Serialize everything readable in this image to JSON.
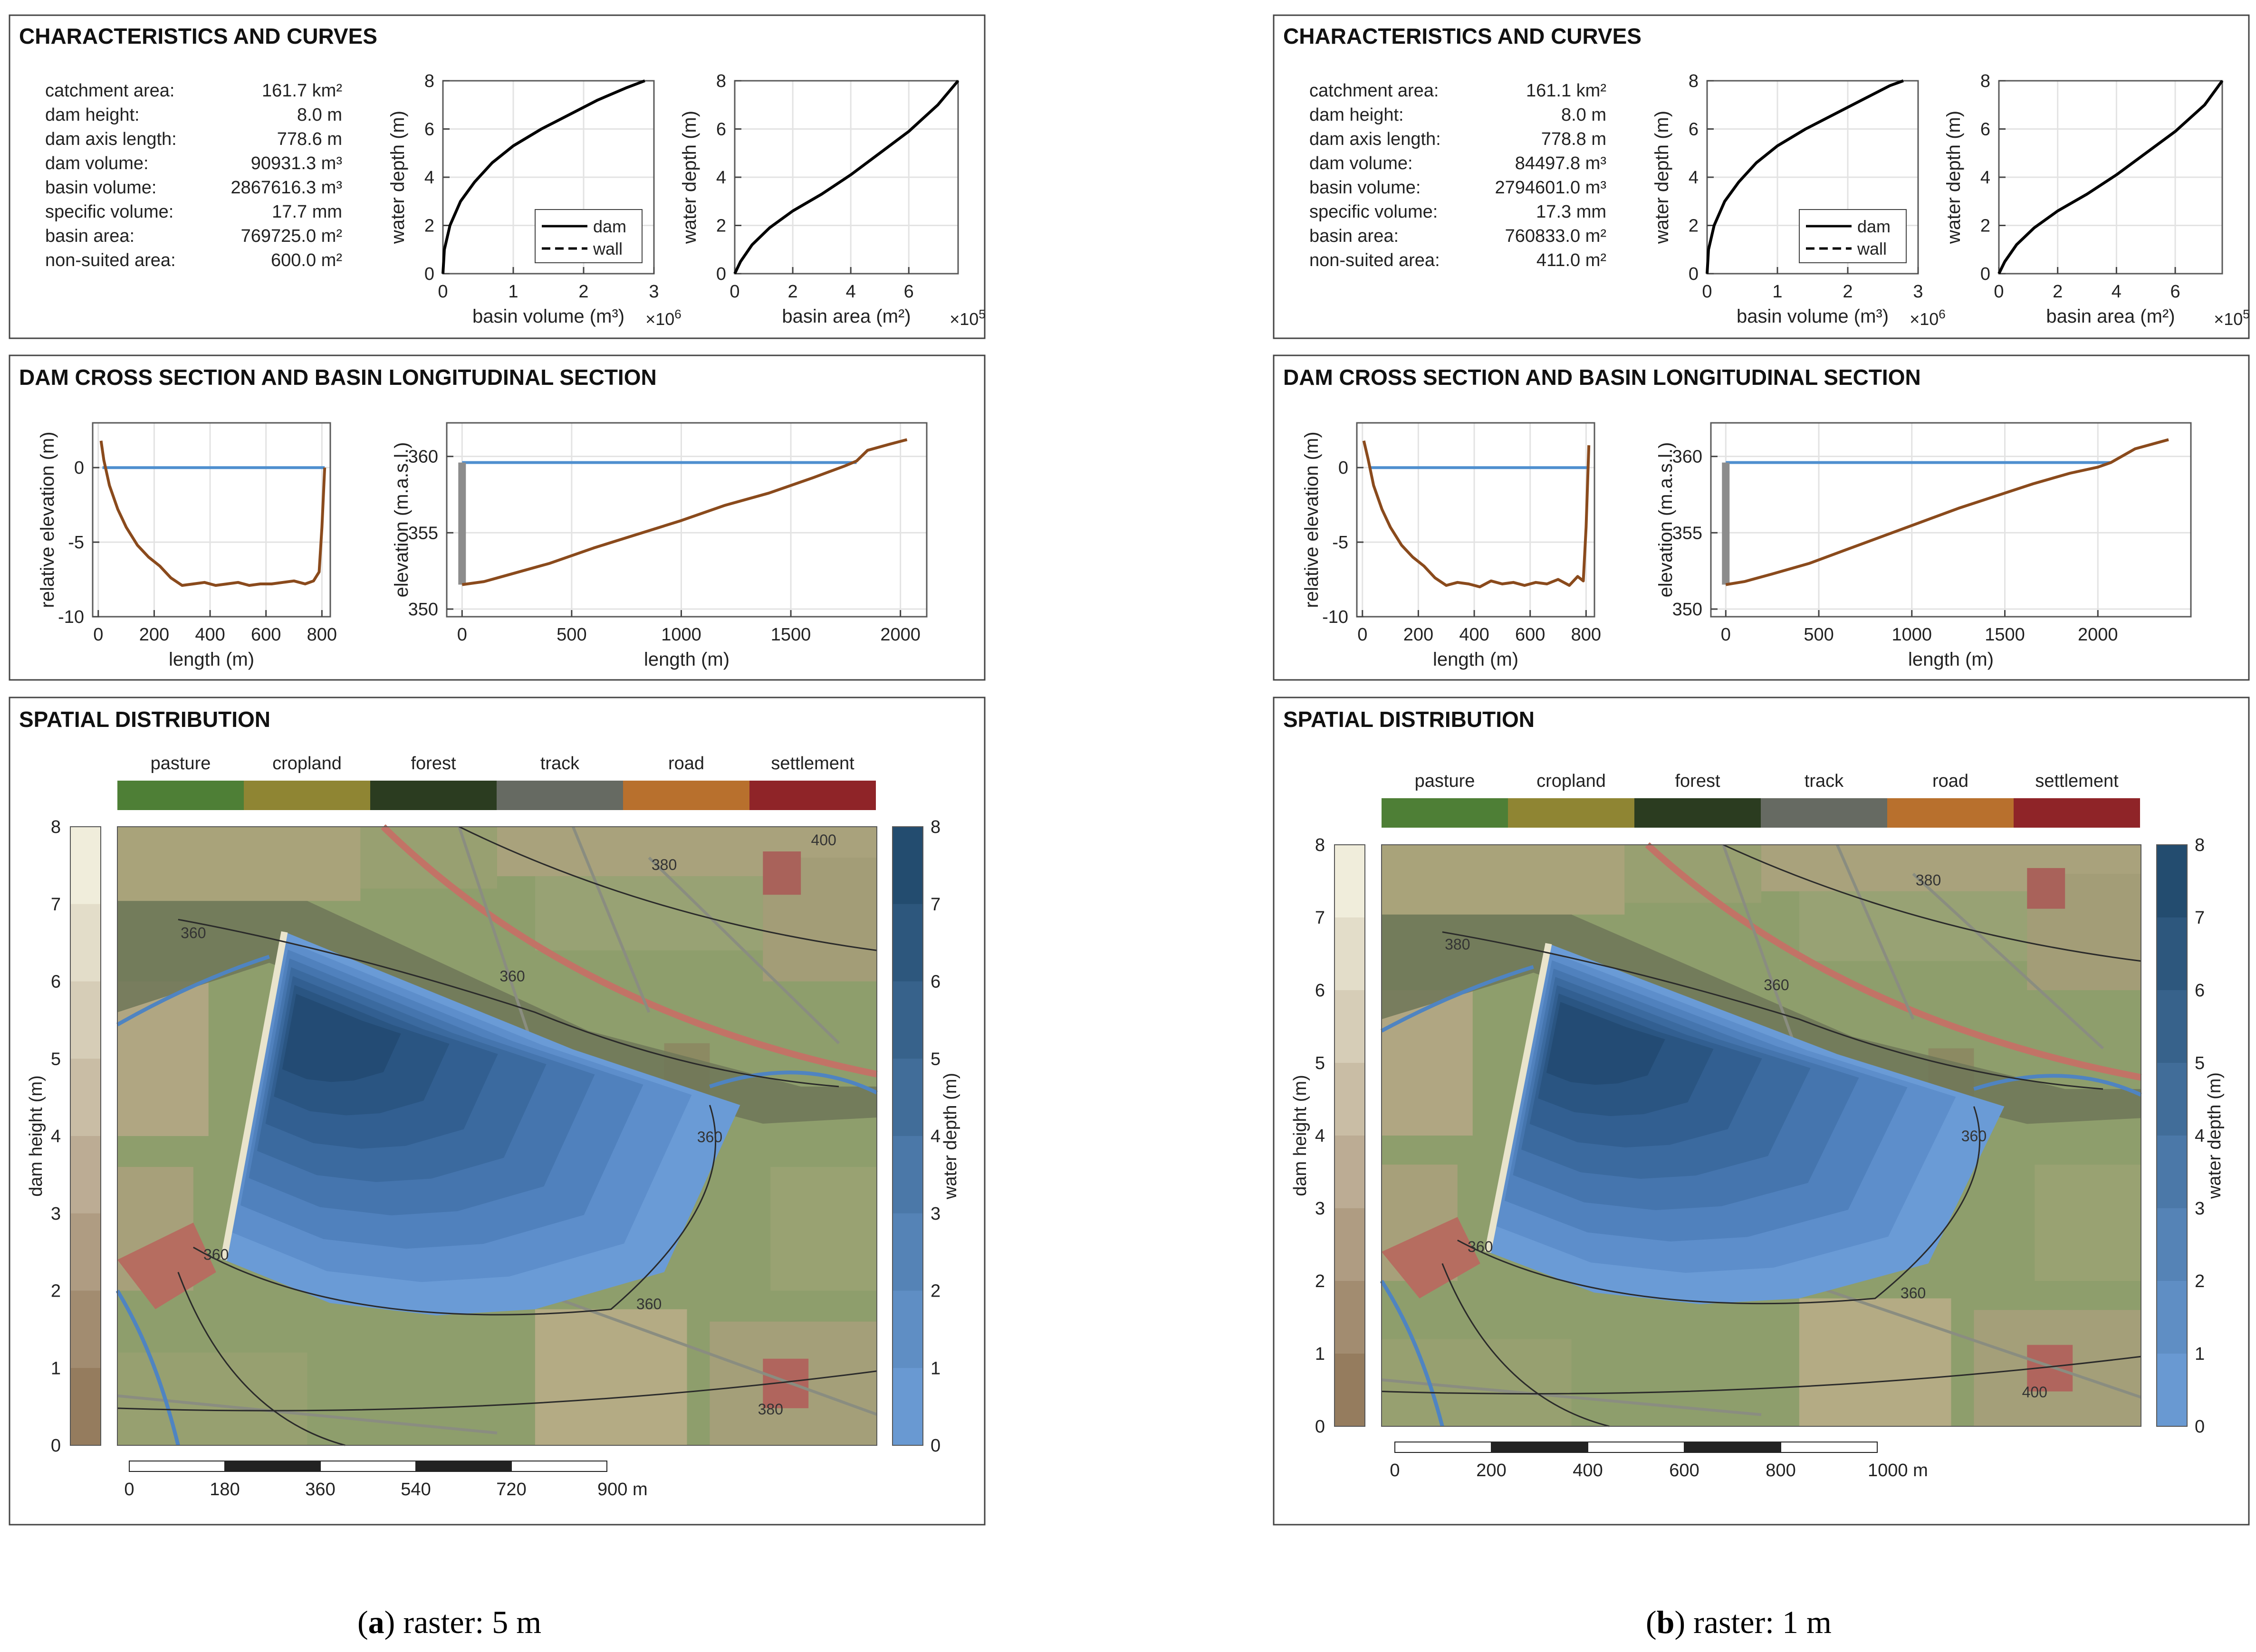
{
  "colors": {
    "curve": "#000000",
    "water_line": "#4f8fcf",
    "terrain": "#8a4a1c",
    "dam_wall": "#8c8c8c",
    "grid": "#e3e3e3",
    "contour": "#2a2a2a"
  },
  "landuse_legend": {
    "labels": [
      "pasture",
      "cropland",
      "forest",
      "track",
      "road",
      "settlement"
    ],
    "colors": [
      "#4e7f36",
      "#8f8533",
      "#2b3c20",
      "#666a62",
      "#b8702d",
      "#8f2428"
    ]
  },
  "panels": [
    {
      "id": "a",
      "caption": {
        "letter": "a",
        "rest": " raster: 5 m",
        "open": "(",
        "close": ")"
      },
      "sections": {
        "characteristics": "CHARACTERISTICS AND CURVES",
        "sections": "DAM CROSS SECTION AND BASIN LONGITUDINAL SECTION",
        "spatial": "SPATIAL DISTRIBUTION"
      },
      "stats": [
        {
          "label": "catchment area:",
          "value": "161.7 km²"
        },
        {
          "label": "dam height:",
          "value": "8.0 m"
        },
        {
          "label": "dam axis length:",
          "value": "778.6 m"
        },
        {
          "label": "dam volume:",
          "value": "90931.3 m³"
        },
        {
          "label": "basin volume:",
          "value": "2867616.3 m³"
        },
        {
          "label": "specific volume:",
          "value": "17.7 mm"
        },
        {
          "label": "basin area:",
          "value": "769725.0 m²"
        },
        {
          "label": "non-suited area:",
          "value": "600.0 m²"
        }
      ],
      "scalebar": {
        "ticks": [
          "0",
          "180",
          "360",
          "540",
          "720",
          "900 m"
        ]
      },
      "contours": [
        "360",
        "360",
        "360",
        "360",
        "360",
        "380",
        "380",
        "400"
      ],
      "chart_data": [
        {
          "type": "line",
          "title": "",
          "xlabel": "basin volume (m³)",
          "ylabel": "water depth (m)",
          "x_multiplier": "×10",
          "x_multiplier_exp": "6",
          "xlim": [
            0,
            3
          ],
          "ylim": [
            0,
            8
          ],
          "xticks": [
            0,
            1,
            2,
            3
          ],
          "yticks": [
            0,
            2,
            4,
            6,
            8
          ],
          "legend": [
            "dam",
            "wall"
          ],
          "legend_position": "bottom-right",
          "series": [
            {
              "name": "dam",
              "x": [
                0,
                0.02,
                0.1,
                0.25,
                0.45,
                0.7,
                1.0,
                1.4,
                1.8,
                2.2,
                2.6,
                2.87
              ],
              "y": [
                0,
                1,
                2,
                3,
                3.8,
                4.6,
                5.3,
                6.0,
                6.6,
                7.2,
                7.7,
                8.0
              ]
            }
          ]
        },
        {
          "type": "line",
          "title": "",
          "xlabel": "basin area (m²)",
          "ylabel": "water depth (m)",
          "x_multiplier": "×10",
          "x_multiplier_exp": "5",
          "xlim": [
            0,
            7.7
          ],
          "ylim": [
            0,
            8
          ],
          "xticks": [
            0,
            2,
            4,
            6
          ],
          "yticks": [
            0,
            2,
            4,
            6,
            8
          ],
          "series": [
            {
              "name": "dam",
              "x": [
                0,
                0.2,
                0.6,
                1.2,
                2,
                3,
                4,
                5,
                6,
                7,
                7.7
              ],
              "y": [
                0,
                0.5,
                1.2,
                1.9,
                2.6,
                3.3,
                4.1,
                5.0,
                5.9,
                7.0,
                8.0
              ]
            }
          ]
        },
        {
          "type": "line",
          "title": "",
          "xlabel": "length (m)",
          "ylabel": "relative elevation (m)",
          "xlim": [
            -20,
            830
          ],
          "ylim": [
            -10,
            3
          ],
          "xticks": [
            0,
            200,
            400,
            600,
            800
          ],
          "yticks": [
            -10,
            -5,
            0
          ],
          "series": [
            {
              "name": "water level",
              "x": [
                15,
                810
              ],
              "y": [
                0,
                0
              ]
            },
            {
              "name": "terrain",
              "x": [
                10,
                20,
                40,
                70,
                100,
                140,
                180,
                220,
                260,
                300,
                340,
                380,
                420,
                460,
                500,
                540,
                580,
                620,
                660,
                700,
                740,
                770,
                790,
                800,
                810
              ],
              "y": [
                1.8,
                0.5,
                -1.2,
                -2.8,
                -4.0,
                -5.2,
                -6.0,
                -6.6,
                -7.4,
                -7.9,
                -7.8,
                -7.7,
                -7.9,
                -7.8,
                -7.7,
                -7.9,
                -7.8,
                -7.8,
                -7.7,
                -7.6,
                -7.8,
                -7.6,
                -7.0,
                -4.0,
                0
              ]
            }
          ]
        },
        {
          "type": "line",
          "title": "",
          "xlabel": "length (m)",
          "ylabel": "elevation (m.a.s.l.)",
          "xlim": [
            -70,
            2120
          ],
          "ylim": [
            349.5,
            362.2
          ],
          "xticks": [
            0,
            500,
            1000,
            1500,
            2000
          ],
          "yticks": [
            350,
            355,
            360
          ],
          "series": [
            {
              "name": "water level",
              "x": [
                0,
                1800
              ],
              "y": [
                359.6,
                359.6
              ]
            },
            {
              "name": "dam",
              "x": [
                0,
                0
              ],
              "y": [
                351.6,
                359.6
              ]
            },
            {
              "name": "terrain",
              "x": [
                0,
                100,
                200,
                400,
                600,
                800,
                1000,
                1200,
                1400,
                1600,
                1750,
                1800,
                1850,
                1950,
                2030
              ],
              "y": [
                351.6,
                351.8,
                352.2,
                353.0,
                354.0,
                354.9,
                355.8,
                356.8,
                357.6,
                358.6,
                359.4,
                359.7,
                360.4,
                360.8,
                361.1
              ]
            }
          ]
        },
        {
          "type": "heatmap",
          "title": "",
          "colorbar_left": {
            "label": "dam height (m)",
            "ticks": [
              0,
              1,
              2,
              3,
              4,
              5,
              6,
              7,
              8
            ]
          },
          "colorbar_right": {
            "label": "water depth (m)",
            "ticks": [
              0,
              1,
              2,
              3,
              4,
              5,
              6,
              7,
              8
            ]
          },
          "legend": [
            "pasture",
            "cropland",
            "forest",
            "track",
            "road",
            "settlement"
          ]
        }
      ]
    },
    {
      "id": "b",
      "caption": {
        "letter": "b",
        "rest": " raster: 1 m",
        "open": "(",
        "close": ")"
      },
      "sections": {
        "characteristics": "CHARACTERISTICS AND CURVES",
        "sections": "DAM CROSS SECTION AND BASIN LONGITUDINAL SECTION",
        "spatial": "SPATIAL DISTRIBUTION"
      },
      "stats": [
        {
          "label": "catchment area:",
          "value": "161.1 km²"
        },
        {
          "label": "dam height:",
          "value": "8.0 m"
        },
        {
          "label": "dam axis length:",
          "value": "778.8 m"
        },
        {
          "label": "dam volume:",
          "value": "84497.8 m³"
        },
        {
          "label": "basin volume:",
          "value": "2794601.0 m³"
        },
        {
          "label": "specific volume:",
          "value": "17.3 mm"
        },
        {
          "label": "basin area:",
          "value": "760833.0 m²"
        },
        {
          "label": "non-suited area:",
          "value": "411.0 m²"
        }
      ],
      "scalebar": {
        "ticks": [
          "0",
          "200",
          "400",
          "600",
          "800",
          "1000 m"
        ]
      },
      "contours": [
        "360",
        "360",
        "360",
        "360",
        "380",
        "380",
        "400"
      ],
      "chart_data": [
        {
          "type": "line",
          "title": "",
          "xlabel": "basin volume (m³)",
          "ylabel": "water depth (m)",
          "x_multiplier": "×10",
          "x_multiplier_exp": "6",
          "xlim": [
            0,
            3
          ],
          "ylim": [
            0,
            8
          ],
          "xticks": [
            0,
            1,
            2,
            3
          ],
          "yticks": [
            0,
            2,
            4,
            6,
            8
          ],
          "legend": [
            "dam",
            "wall"
          ],
          "legend_position": "bottom-right",
          "series": [
            {
              "name": "dam",
              "x": [
                0,
                0.02,
                0.1,
                0.25,
                0.45,
                0.7,
                1.0,
                1.4,
                1.8,
                2.2,
                2.6,
                2.79
              ],
              "y": [
                0,
                1,
                2,
                3,
                3.8,
                4.6,
                5.3,
                6.0,
                6.6,
                7.2,
                7.8,
                8.0
              ]
            }
          ]
        },
        {
          "type": "line",
          "title": "",
          "xlabel": "basin area (m²)",
          "ylabel": "water depth (m)",
          "x_multiplier": "×10",
          "x_multiplier_exp": "5",
          "xlim": [
            0,
            7.6
          ],
          "ylim": [
            0,
            8
          ],
          "xticks": [
            0,
            2,
            4,
            6
          ],
          "yticks": [
            0,
            2,
            4,
            6,
            8
          ],
          "series": [
            {
              "name": "dam",
              "x": [
                0,
                0.2,
                0.6,
                1.2,
                2,
                3,
                4,
                5,
                6,
                7,
                7.6
              ],
              "y": [
                0,
                0.5,
                1.2,
                1.9,
                2.6,
                3.3,
                4.1,
                5.0,
                5.9,
                7.0,
                8.0
              ]
            }
          ]
        },
        {
          "type": "line",
          "title": "",
          "xlabel": "length (m)",
          "ylabel": "relative elevation (m)",
          "xlim": [
            -20,
            830
          ],
          "ylim": [
            -10,
            3
          ],
          "xticks": [
            0,
            200,
            400,
            600,
            800
          ],
          "yticks": [
            -10,
            -5,
            0
          ],
          "series": [
            {
              "name": "water level",
              "x": [
                30,
                810
              ],
              "y": [
                0,
                0
              ]
            },
            {
              "name": "terrain",
              "x": [
                5,
                20,
                40,
                70,
                100,
                140,
                180,
                220,
                260,
                300,
                340,
                380,
                420,
                460,
                500,
                540,
                580,
                620,
                660,
                700,
                740,
                770,
                790,
                800,
                810
              ],
              "y": [
                1.8,
                0.6,
                -1.2,
                -2.8,
                -4.0,
                -5.2,
                -6.0,
                -6.6,
                -7.4,
                -7.9,
                -7.7,
                -7.8,
                -8.0,
                -7.6,
                -7.8,
                -7.7,
                -7.9,
                -7.7,
                -7.8,
                -7.5,
                -7.9,
                -7.3,
                -7.6,
                -4.0,
                1.5
              ]
            }
          ]
        },
        {
          "type": "line",
          "title": "",
          "xlabel": "length (m)",
          "ylabel": "elevation (m.a.s.l.)",
          "xlim": [
            -80,
            2500
          ],
          "ylim": [
            349.5,
            362.2
          ],
          "xticks": [
            0,
            500,
            1000,
            1500,
            2000
          ],
          "yticks": [
            350,
            355,
            360
          ],
          "series": [
            {
              "name": "water level",
              "x": [
                0,
                2070
              ],
              "y": [
                359.6,
                359.6
              ]
            },
            {
              "name": "dam",
              "x": [
                0,
                0
              ],
              "y": [
                351.6,
                359.6
              ]
            },
            {
              "name": "terrain",
              "x": [
                0,
                100,
                250,
                450,
                650,
                850,
                1050,
                1250,
                1450,
                1650,
                1850,
                2000,
                2070,
                2200,
                2380
              ],
              "y": [
                351.6,
                351.8,
                352.3,
                353.0,
                353.9,
                354.8,
                355.7,
                356.6,
                357.4,
                358.2,
                358.9,
                359.3,
                359.6,
                360.5,
                361.1
              ]
            }
          ]
        },
        {
          "type": "heatmap",
          "title": "",
          "colorbar_left": {
            "label": "dam height (m)",
            "ticks": [
              0,
              1,
              2,
              3,
              4,
              5,
              6,
              7,
              8
            ]
          },
          "colorbar_right": {
            "label": "water depth (m)",
            "ticks": [
              0,
              1,
              2,
              3,
              4,
              5,
              6,
              7,
              8
            ]
          },
          "legend": [
            "pasture",
            "cropland",
            "forest",
            "track",
            "road",
            "settlement"
          ]
        }
      ]
    }
  ]
}
